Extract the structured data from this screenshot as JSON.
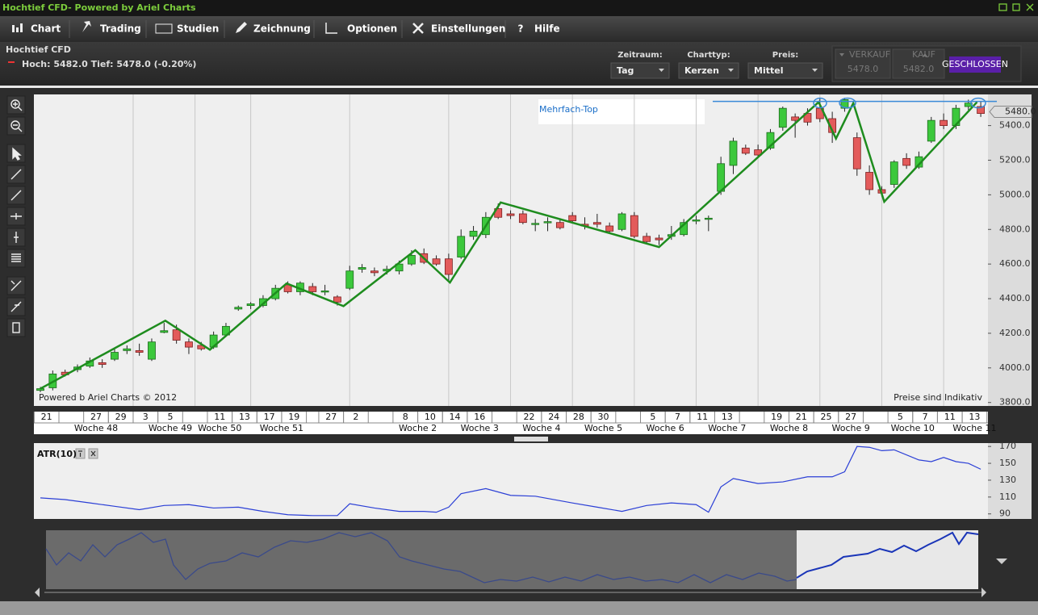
{
  "window": {
    "title": "Hochtief CFD- Powered by Ariel Charts"
  },
  "menu": [
    "Chart",
    "Trading",
    "Studien",
    "Zeichnung",
    "Optionen",
    "Einstellungen",
    "Hilfe"
  ],
  "instrument": {
    "name": "Hochtief CFD",
    "stats": "Hoch: 5482.0 Tief: 5478.0 (-0.20%)"
  },
  "controls": [
    {
      "label": "Zeitraum:",
      "value": "Tag"
    },
    {
      "label": "Charttyp:",
      "value": "Kerzen"
    },
    {
      "label": "Preis:",
      "value": "Mittel"
    }
  ],
  "quote": {
    "sell_label": "VERKAUF",
    "sell": "5478.0",
    "buy_label": "KAUF",
    "buy": "5482.0",
    "status": "GESCHLOSSEN"
  },
  "chart_data": [
    {
      "type": "candlestick",
      "annotation": "Mehrfach-Top",
      "footer_left": "Powered b Ariel Charts © 2012",
      "footer_right": "Preise sind Indikativ",
      "categories": [
        "21",
        null,
        null,
        null,
        "27",
        null,
        "29",
        null,
        "3",
        null,
        "5",
        null,
        null,
        null,
        "11",
        null,
        "13",
        null,
        "17",
        null,
        "19",
        null,
        null,
        "27",
        null,
        "2",
        null,
        null,
        null,
        "8",
        null,
        "10",
        null,
        "14",
        null,
        "16",
        null,
        null,
        null,
        "22",
        null,
        "24",
        null,
        "28",
        null,
        "30",
        null,
        null,
        null,
        "5",
        null,
        "7",
        null,
        "11",
        null,
        "13",
        null,
        null,
        null,
        "19",
        null,
        "21",
        null,
        "25",
        null,
        "27",
        null,
        null,
        null,
        "5",
        null,
        "7",
        null,
        "11",
        null,
        "13",
        null
      ],
      "week_labels": [
        null,
        null,
        null,
        null,
        "Woche 48",
        null,
        null,
        null,
        null,
        null,
        "Woche 49",
        null,
        null,
        null,
        "Woche 50",
        null,
        null,
        null,
        null,
        "Woche 51",
        null,
        null,
        null,
        null,
        null,
        null,
        null,
        null,
        null,
        null,
        "Woche 2",
        null,
        null,
        null,
        null,
        "Woche 3",
        null,
        null,
        null,
        null,
        "Woche 4",
        null,
        null,
        null,
        null,
        "Woche 5",
        null,
        null,
        null,
        null,
        "Woche 6",
        null,
        null,
        null,
        null,
        "Woche 7",
        null,
        null,
        null,
        null,
        "Woche 8",
        null,
        null,
        null,
        null,
        "Woche 9",
        null,
        null,
        null,
        null,
        "Woche 10",
        null,
        null,
        null,
        null,
        "Woche 11",
        null
      ],
      "open": [
        3870,
        3885,
        3975,
        3990,
        4010,
        4030,
        4050,
        4100,
        4100,
        4050,
        4205,
        4220,
        4150,
        4130,
        4120,
        4190,
        4340,
        4360,
        4360,
        4400,
        4480,
        4440,
        4470,
        4440,
        4410,
        4460,
        4570,
        4560,
        4560,
        4560,
        4600,
        4660,
        4630,
        4630,
        4640,
        4760,
        4770,
        4920,
        4890,
        4890,
        4830,
        4840,
        4840,
        4880,
        4830,
        4840,
        4820,
        4800,
        4880,
        4760,
        4750,
        4760,
        4770,
        4850,
        4860,
        5020,
        5170,
        5270,
        5260,
        5270,
        5390,
        5450,
        5470,
        5500,
        5440,
        5500,
        5330,
        5130,
        5030,
        5060,
        5210,
        5160,
        5310,
        5430,
        5400,
        5510,
        5510
      ],
      "high": [
        3890,
        3985,
        3990,
        4020,
        4060,
        4050,
        4110,
        4130,
        4140,
        4170,
        4260,
        4250,
        4170,
        4150,
        4210,
        4260,
        4360,
        4380,
        4420,
        4480,
        4500,
        4500,
        4490,
        4480,
        4420,
        4590,
        4600,
        4580,
        4590,
        4620,
        4680,
        4690,
        4650,
        4660,
        4800,
        4820,
        4900,
        4950,
        4910,
        4910,
        4860,
        4870,
        4860,
        4900,
        4870,
        4890,
        4840,
        4900,
        4900,
        4780,
        4770,
        4820,
        4860,
        4880,
        4880,
        5220,
        5330,
        5290,
        5290,
        5380,
        5510,
        5470,
        5500,
        5560,
        5480,
        5560,
        5360,
        5170,
        5050,
        5200,
        5240,
        5250,
        5450,
        5470,
        5520,
        5550,
        5540
      ],
      "low": [
        3860,
        3870,
        3950,
        3975,
        4000,
        4000,
        4040,
        4080,
        4070,
        4040,
        4200,
        4140,
        4080,
        4100,
        4110,
        4180,
        4330,
        4340,
        4350,
        4390,
        4430,
        4420,
        4420,
        4420,
        4360,
        4450,
        4550,
        4530,
        4540,
        4540,
        4590,
        4600,
        4590,
        4500,
        4630,
        4740,
        4750,
        4860,
        4860,
        4830,
        4790,
        4790,
        4800,
        4840,
        4800,
        4810,
        4780,
        4790,
        4750,
        4720,
        4710,
        4740,
        4760,
        4830,
        4790,
        5000,
        5120,
        5230,
        5220,
        5260,
        5370,
        5330,
        5400,
        5420,
        5300,
        5480,
        5110,
        5000,
        4990,
        5040,
        5150,
        5150,
        5300,
        5380,
        5380,
        5490,
        5450
      ],
      "close": [
        3880,
        3965,
        3960,
        4005,
        4040,
        4020,
        4090,
        4110,
        4090,
        4150,
        4215,
        4160,
        4120,
        4110,
        4190,
        4240,
        4350,
        4370,
        4400,
        4460,
        4440,
        4490,
        4440,
        4445,
        4380,
        4560,
        4580,
        4550,
        4570,
        4600,
        4650,
        4610,
        4600,
        4540,
        4760,
        4790,
        4870,
        4870,
        4880,
        4840,
        4835,
        4845,
        4810,
        4850,
        4820,
        4830,
        4790,
        4890,
        4760,
        4730,
        4740,
        4770,
        4840,
        4855,
        4865,
        5180,
        5310,
        5240,
        5230,
        5360,
        5500,
        5430,
        5420,
        5440,
        5360,
        5550,
        5150,
        5030,
        5010,
        5190,
        5170,
        5220,
        5430,
        5400,
        5500,
        5530,
        5470
      ],
      "up_color": "#3cc83c",
      "down_color": "#e35b5b",
      "ylim": [
        3780,
        5580
      ],
      "yticks": [
        {
          "value": 3800,
          "label": "3800.0"
        },
        {
          "value": 4000,
          "label": "4000.0"
        },
        {
          "value": 4200,
          "label": "4200.0"
        },
        {
          "value": 4400,
          "label": "4400.0"
        },
        {
          "value": 4600,
          "label": "4600.0"
        },
        {
          "value": 4800,
          "label": "4800.0"
        },
        {
          "value": 5000,
          "label": "5000.0"
        },
        {
          "value": 5200,
          "label": "5200.0"
        },
        {
          "value": 5400,
          "label": "5400.0"
        }
      ],
      "last_price": {
        "value": 5480,
        "label": "5480.0"
      },
      "trend_line": {
        "x": [
          0,
          10.1,
          13.7,
          19.9,
          24.5,
          30.3,
          33.1,
          37.2,
          50,
          62.9,
          64.3,
          65.7,
          68.2,
          75.7
        ],
        "values": [
          3880,
          4273,
          4105,
          4488,
          4357,
          4680,
          4493,
          4956,
          4698,
          5536,
          5325,
          5530,
          4960,
          5536
        ],
        "color": "#1e8c1e"
      },
      "resistance": {
        "value": 5540,
        "color": "#3a8ad8"
      }
    },
    {
      "type": "line",
      "title": "ATR(10)",
      "x": [
        0,
        2,
        4,
        6,
        8,
        10,
        12,
        14,
        16,
        18,
        20,
        22,
        24,
        25,
        27,
        29,
        31,
        32,
        33,
        34,
        36,
        38,
        40,
        43,
        45,
        47,
        49,
        51,
        53,
        54,
        55,
        56,
        58,
        60,
        62,
        64,
        65,
        66,
        67,
        68,
        69,
        71,
        72,
        73,
        74,
        75,
        76
      ],
      "values": [
        109,
        107,
        103,
        99,
        95,
        100,
        101,
        97,
        98,
        93,
        89,
        88,
        88,
        102,
        97,
        93,
        93,
        92,
        98,
        114,
        120,
        112,
        111,
        103,
        98,
        93,
        100,
        103,
        101,
        92,
        122,
        132,
        126,
        128,
        134,
        134,
        140,
        170,
        169,
        165,
        166,
        154,
        152,
        157,
        152,
        150,
        143
      ],
      "color": "#2b3fd6",
      "xlim": [
        0,
        76
      ],
      "ylim": [
        84,
        174
      ],
      "yticks": [
        90,
        110,
        130,
        150,
        170
      ]
    }
  ]
}
